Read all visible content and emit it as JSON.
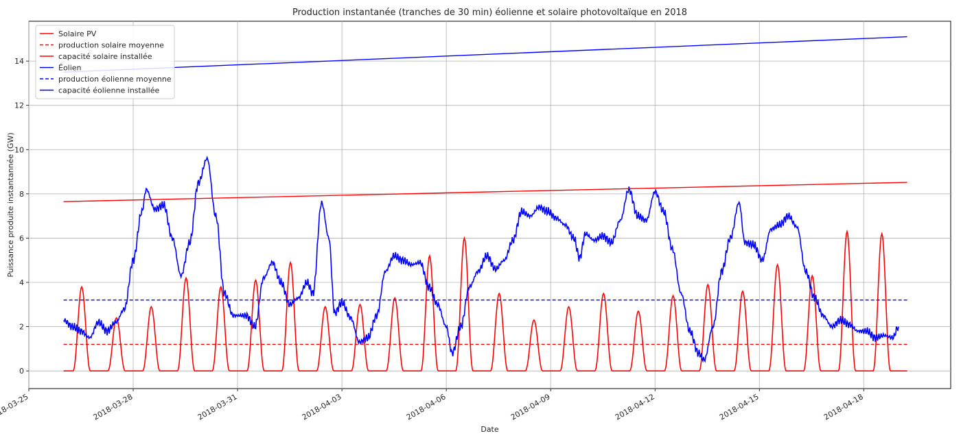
{
  "chart_data": {
    "type": "line",
    "title": "Production instantanée (tranches de 30 min) éolienne et solaire photovoltaïque en 2018",
    "xlabel": "Date",
    "ylabel": "Puissance produite instantannée (GW)",
    "xlim": [
      "2018-03-25 00:00",
      "2018-04-20 12:00"
    ],
    "ylim": [
      -0.8,
      15.8
    ],
    "x_ticks": [
      "2018-03-25",
      "2018-03-28",
      "2018-03-31",
      "2018-04-03",
      "2018-04-06",
      "2018-04-09",
      "2018-04-12",
      "2018-04-15",
      "2018-04-18"
    ],
    "y_ticks": [
      0,
      2,
      4,
      6,
      8,
      10,
      12,
      14
    ],
    "grid": true,
    "legend_position": "top-left",
    "solar_daily_peaks": [
      [
        "2018-03-26",
        3.8
      ],
      [
        "2018-03-27",
        2.4
      ],
      [
        "2018-03-28",
        2.9
      ],
      [
        "2018-03-29",
        4.2
      ],
      [
        "2018-03-30",
        3.8
      ],
      [
        "2018-03-31",
        4.1
      ],
      [
        "2018-04-01",
        4.9
      ],
      [
        "2018-04-02",
        2.9
      ],
      [
        "2018-04-03",
        3.0
      ],
      [
        "2018-04-04",
        3.3
      ],
      [
        "2018-04-05",
        5.2
      ],
      [
        "2018-04-06",
        6.0
      ],
      [
        "2018-04-07",
        3.5
      ],
      [
        "2018-04-08",
        2.3
      ],
      [
        "2018-04-09",
        2.9
      ],
      [
        "2018-04-10",
        3.5
      ],
      [
        "2018-04-11",
        2.7
      ],
      [
        "2018-04-12",
        3.4
      ],
      [
        "2018-04-13",
        3.9
      ],
      [
        "2018-04-14",
        3.6
      ],
      [
        "2018-04-15",
        4.8
      ],
      [
        "2018-04-16",
        4.3
      ],
      [
        "2018-04-17",
        6.3
      ],
      [
        "2018-04-18",
        6.2
      ]
    ],
    "wind_points": [
      [
        "2018-03-26 00:00",
        2.3
      ],
      [
        "2018-03-26 06:00",
        2.0
      ],
      [
        "2018-03-26 12:00",
        1.8
      ],
      [
        "2018-03-26 18:00",
        1.5
      ],
      [
        "2018-03-27 00:00",
        2.2
      ],
      [
        "2018-03-27 06:00",
        1.8
      ],
      [
        "2018-03-27 12:00",
        2.2
      ],
      [
        "2018-03-27 18:00",
        2.8
      ],
      [
        "2018-03-28 00:00",
        5.0
      ],
      [
        "2018-03-28 06:00",
        7.2
      ],
      [
        "2018-03-28 09:00",
        8.2
      ],
      [
        "2018-03-28 15:00",
        7.3
      ],
      [
        "2018-03-28 21:00",
        7.5
      ],
      [
        "2018-03-29 03:00",
        6.0
      ],
      [
        "2018-03-29 09:00",
        4.3
      ],
      [
        "2018-03-29 15:00",
        5.8
      ],
      [
        "2018-03-29 21:00",
        8.5
      ],
      [
        "2018-03-30 03:00",
        9.6
      ],
      [
        "2018-03-30 09:00",
        7.0
      ],
      [
        "2018-03-30 15:00",
        3.5
      ],
      [
        "2018-03-30 21:00",
        2.5
      ],
      [
        "2018-03-31 06:00",
        2.5
      ],
      [
        "2018-03-31 12:00",
        2.0
      ],
      [
        "2018-03-31 18:00",
        4.2
      ],
      [
        "2018-04-01 00:00",
        4.9
      ],
      [
        "2018-04-01 06:00",
        4.0
      ],
      [
        "2018-04-01 12:00",
        3.0
      ],
      [
        "2018-04-01 18:00",
        3.3
      ],
      [
        "2018-04-02 00:00",
        4.0
      ],
      [
        "2018-04-02 04:00",
        3.5
      ],
      [
        "2018-04-02 10:00",
        7.6
      ],
      [
        "2018-04-02 15:00",
        6.0
      ],
      [
        "2018-04-02 19:00",
        2.6
      ],
      [
        "2018-04-03 00:00",
        3.1
      ],
      [
        "2018-04-03 06:00",
        2.4
      ],
      [
        "2018-04-03 12:00",
        1.3
      ],
      [
        "2018-04-03 18:00",
        1.5
      ],
      [
        "2018-04-04 00:00",
        2.5
      ],
      [
        "2018-04-04 06:00",
        4.5
      ],
      [
        "2018-04-04 12:00",
        5.2
      ],
      [
        "2018-04-04 18:00",
        5.0
      ],
      [
        "2018-04-05 00:00",
        4.8
      ],
      [
        "2018-04-05 06:00",
        4.9
      ],
      [
        "2018-04-05 12:00",
        3.8
      ],
      [
        "2018-04-05 18:00",
        3.0
      ],
      [
        "2018-04-06 00:00",
        2.0
      ],
      [
        "2018-04-06 04:00",
        0.8
      ],
      [
        "2018-04-06 10:00",
        2.0
      ],
      [
        "2018-04-06 16:00",
        3.8
      ],
      [
        "2018-04-06 22:00",
        4.5
      ],
      [
        "2018-04-07 04:00",
        5.2
      ],
      [
        "2018-04-07 10:00",
        4.6
      ],
      [
        "2018-04-07 16:00",
        5.0
      ],
      [
        "2018-04-07 22:00",
        5.9
      ],
      [
        "2018-04-08 04:00",
        7.2
      ],
      [
        "2018-04-08 10:00",
        7.0
      ],
      [
        "2018-04-08 16:00",
        7.4
      ],
      [
        "2018-04-08 22:00",
        7.2
      ],
      [
        "2018-04-09 04:00",
        6.9
      ],
      [
        "2018-04-09 10:00",
        6.6
      ],
      [
        "2018-04-09 16:00",
        6.0
      ],
      [
        "2018-04-09 20:00",
        5.1
      ],
      [
        "2018-04-10 00:00",
        6.2
      ],
      [
        "2018-04-10 06:00",
        5.9
      ],
      [
        "2018-04-10 12:00",
        6.1
      ],
      [
        "2018-04-10 18:00",
        5.8
      ],
      [
        "2018-04-11 00:00",
        6.8
      ],
      [
        "2018-04-11 06:00",
        8.2
      ],
      [
        "2018-04-11 12:00",
        7.0
      ],
      [
        "2018-04-11 18:00",
        6.8
      ],
      [
        "2018-04-12 00:00",
        8.1
      ],
      [
        "2018-04-12 06:00",
        7.2
      ],
      [
        "2018-04-12 12:00",
        5.5
      ],
      [
        "2018-04-12 18:00",
        3.5
      ],
      [
        "2018-04-13 00:00",
        1.8
      ],
      [
        "2018-04-13 06:00",
        0.8
      ],
      [
        "2018-04-13 10:00",
        0.5
      ],
      [
        "2018-04-13 16:00",
        2.0
      ],
      [
        "2018-04-13 22:00",
        4.5
      ],
      [
        "2018-04-14 04:00",
        6.0
      ],
      [
        "2018-04-14 10:00",
        7.6
      ],
      [
        "2018-04-14 14:00",
        5.8
      ],
      [
        "2018-04-14 20:00",
        5.7
      ],
      [
        "2018-04-15 02:00",
        5.0
      ],
      [
        "2018-04-15 08:00",
        6.4
      ],
      [
        "2018-04-15 14:00",
        6.6
      ],
      [
        "2018-04-15 20:00",
        7.0
      ],
      [
        "2018-04-16 02:00",
        6.5
      ],
      [
        "2018-04-16 08:00",
        4.5
      ],
      [
        "2018-04-16 14:00",
        3.3
      ],
      [
        "2018-04-16 20:00",
        2.5
      ],
      [
        "2018-04-17 02:00",
        2.0
      ],
      [
        "2018-04-17 08:00",
        2.3
      ],
      [
        "2018-04-17 14:00",
        2.1
      ],
      [
        "2018-04-17 20:00",
        1.8
      ],
      [
        "2018-04-18 02:00",
        1.8
      ],
      [
        "2018-04-18 08:00",
        1.5
      ],
      [
        "2018-04-18 14:00",
        1.6
      ],
      [
        "2018-04-18 20:00",
        1.5
      ],
      [
        "2018-04-19 00:00",
        2.0
      ]
    ],
    "series": [
      {
        "name": "Solaire PV",
        "color": "#ff0000",
        "style": "solid"
      },
      {
        "name": "production solaire moyenne",
        "color": "#ff0000",
        "style": "dashed",
        "values": [
          1.2,
          1.2
        ],
        "x": [
          "2018-03-26 00:00",
          "2018-04-19 06:00"
        ]
      },
      {
        "name": "capacité solaire installée",
        "color": "#ff0000",
        "style": "solid",
        "values": [
          7.65,
          8.52
        ],
        "x": [
          "2018-03-26 00:00",
          "2018-04-19 06:00"
        ]
      },
      {
        "name": "Éolien",
        "color": "#0000ff",
        "style": "solid"
      },
      {
        "name": "production éolienne moyenne",
        "color": "#0000ff",
        "style": "dashed",
        "values": [
          3.2,
          3.2
        ],
        "x": [
          "2018-03-26 00:00",
          "2018-04-19 06:00"
        ]
      },
      {
        "name": "capacité éolienne installée",
        "color": "#0000ff",
        "style": "solid",
        "values": [
          13.5,
          15.1
        ],
        "x": [
          "2018-03-26 00:00",
          "2018-04-19 06:00"
        ]
      }
    ]
  }
}
